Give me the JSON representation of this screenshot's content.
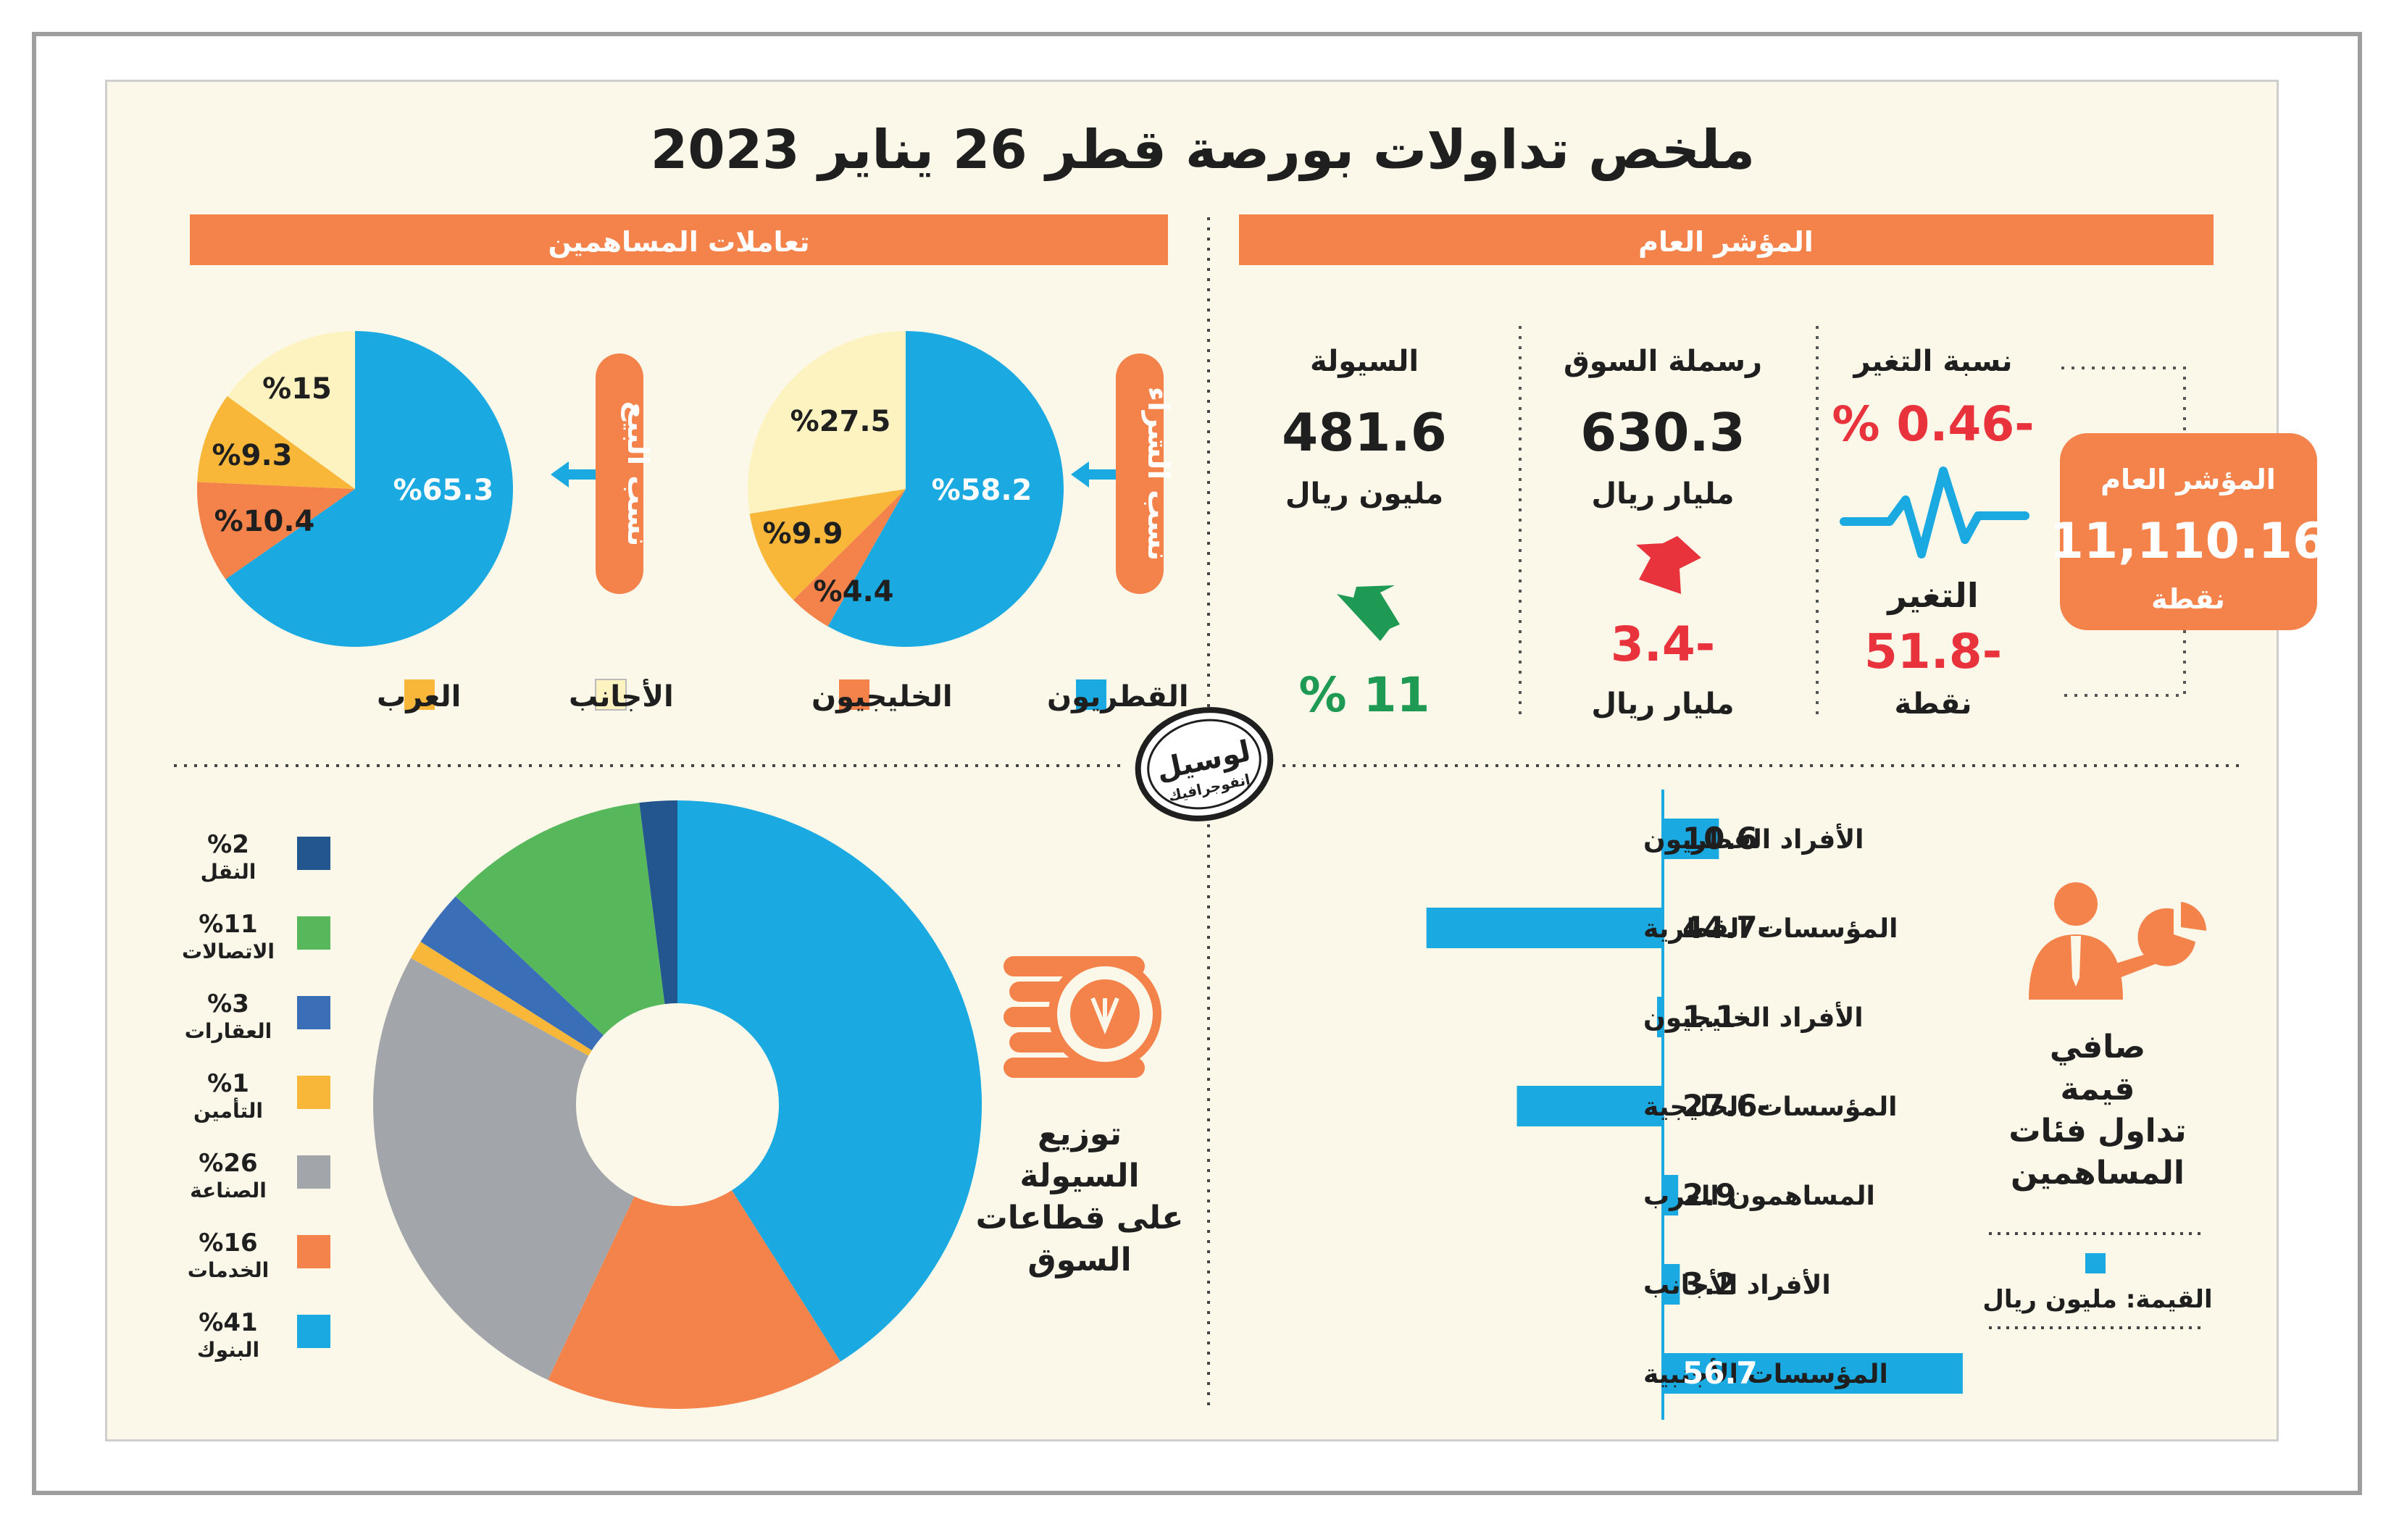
{
  "title": "ملخص تداولات بورصة قطر 26 يناير 2023",
  "colors": {
    "orange": "#f4824b",
    "blue": "#1aa9e0",
    "yellow": "#f9b73a",
    "cream": "#fdf3c0",
    "green": "#56b85a",
    "grey": "#a2a6ab",
    "navy": "#23558e",
    "steel": "#3a6fb8",
    "red": "#e8333c",
    "dark": "#1f1f1f"
  },
  "index": {
    "header": "المؤشر العام",
    "box_title": "المؤشر العام",
    "box_value": "11,110.16",
    "box_unit": "نقطة",
    "change_pct_label": "نسبة التغير",
    "change_pct_value": "% 0.46-",
    "change_label": "التغير",
    "change_value": "51.8-",
    "change_unit": "نقطة",
    "cap_label": "رسملة السوق",
    "cap_value": "630.3",
    "cap_unit": "مليار ريال",
    "cap_change": "3.4-",
    "cap_change_unit": "مليار ريال",
    "liq_label": "السيولة",
    "liq_value": "481.6",
    "liq_unit": "مليون ريال",
    "liq_change": "% 11",
    "icons": [
      "pulse-icon",
      "red-down-arrow-icon",
      "green-up-arrow-icon"
    ]
  },
  "shareholders": {
    "header": "تعاملات المساهمين",
    "buy_label": "نسب الشراء",
    "sell_label": "نسب البيع",
    "legend": [
      {
        "name": "القطريون",
        "color": "#1aa9e0"
      },
      {
        "name": "الخليجيون",
        "color": "#f4824b"
      },
      {
        "name": "الأجانب",
        "color": "#fdf3c0"
      },
      {
        "name": "العرب",
        "color": "#f9b73a"
      }
    ]
  },
  "stamp": {
    "line1": "لوسيل",
    "line2": "إنفوجرافيك"
  },
  "sectors": {
    "label_lines": [
      "توزيع",
      "السيولة",
      "على قطاعات",
      "السوق"
    ],
    "legend": [
      {
        "pct": "%2",
        "name": "النقل",
        "color": "#23558e"
      },
      {
        "pct": "%11",
        "name": "الاتصالات",
        "color": "#56b85a"
      },
      {
        "pct": "%3",
        "name": "العقارات",
        "color": "#3a6fb8"
      },
      {
        "pct": "%1",
        "name": "التأمين",
        "color": "#f9b73a"
      },
      {
        "pct": "%26",
        "name": "الصناعة",
        "color": "#a2a6ab"
      },
      {
        "pct": "%16",
        "name": "الخدمات",
        "color": "#f4824b"
      },
      {
        "pct": "%41",
        "name": "البنوك",
        "color": "#1aa9e0"
      }
    ]
  },
  "net_value": {
    "title_lines": [
      "صافي",
      "قيمة",
      "تداول فئات",
      "المساهمين"
    ],
    "legend_label": "القيمة: مليون ريال"
  },
  "chart_data": [
    {
      "type": "pie",
      "title": "نسب الشراء",
      "categories": [
        "القطريون",
        "الخليجيون",
        "العرب",
        "الأجانب"
      ],
      "values": [
        58.2,
        4.4,
        9.9,
        27.5
      ],
      "labels": [
        "%58.2",
        "%4.4",
        "%9.9",
        "%27.5"
      ],
      "colors": [
        "#1aa9e0",
        "#f4824b",
        "#f9b73a",
        "#fdf3c0"
      ]
    },
    {
      "type": "pie",
      "title": "نسب البيع",
      "categories": [
        "القطريون",
        "الخليجيون",
        "العرب",
        "الأجانب"
      ],
      "values": [
        65.3,
        10.4,
        9.3,
        15
      ],
      "labels": [
        "%65.3",
        "%10.4",
        "%9.3",
        "%15"
      ],
      "colors": [
        "#1aa9e0",
        "#f4824b",
        "#f9b73a",
        "#fdf3c0"
      ]
    },
    {
      "type": "pie",
      "title": "",
      "categories": [
        "البنوك",
        "الخدمات",
        "الصناعة",
        "التأمين",
        "العقارات",
        "الاتصالات",
        "النقل"
      ],
      "values": [
        41,
        16,
        26,
        1,
        3,
        11,
        2
      ],
      "colors": [
        "#1aa9e0",
        "#f4824b",
        "#a2a6ab",
        "#f9b73a",
        "#3a6fb8",
        "#56b85a",
        "#23558e"
      ]
    },
    {
      "type": "bar",
      "title": "",
      "categories": [
        "الأفراد القطريون",
        "المؤسسات القطرية",
        "الأفراد الخليجيون",
        "المؤسسات الخليجية",
        "المساهمون العرب",
        "الأفراد الأجانب",
        "المؤسسات الأجنبية"
      ],
      "values": [
        10.6,
        -44.7,
        -1.1,
        -27.6,
        2.9,
        3.2,
        56.7
      ],
      "labels": [
        "10.6",
        "44.7-",
        "1.1-",
        "27.6-",
        "2.9",
        "3.2",
        "56.7"
      ],
      "xlim": [
        -50,
        60
      ]
    }
  ]
}
